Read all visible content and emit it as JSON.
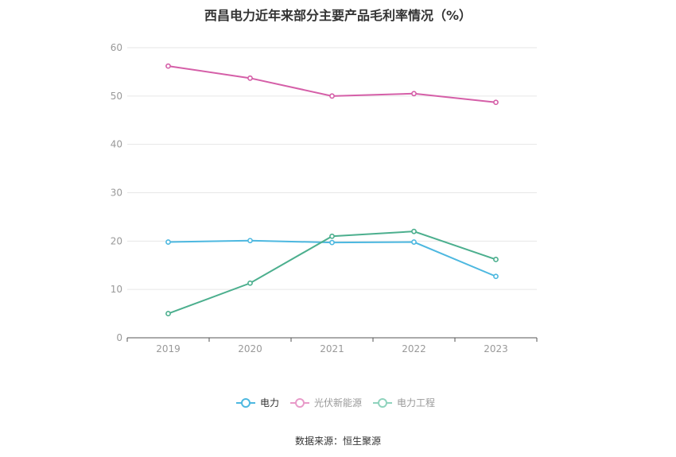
{
  "title": "西昌电力近年来部分主要产品毛利率情况（%）",
  "source": "数据来源：恒生聚源",
  "chart_data": {
    "type": "line",
    "categories": [
      "2019",
      "2020",
      "2021",
      "2022",
      "2023"
    ],
    "ylim": [
      0,
      60
    ],
    "yticks": [
      0,
      10,
      20,
      30,
      40,
      50,
      60
    ],
    "grid": true,
    "legend_position": "bottom-center",
    "series": [
      {
        "name": "电力",
        "color": "#4db8e0",
        "values": [
          19.8,
          20.1,
          19.7,
          19.8,
          12.7
        ]
      },
      {
        "name": "光伏新能源",
        "color": "#d55fa8",
        "values": [
          56.2,
          53.7,
          50.0,
          50.5,
          48.7
        ]
      },
      {
        "name": "电力工程",
        "color": "#4caf8e",
        "values": [
          5.0,
          11.3,
          21.0,
          22.0,
          16.2
        ]
      }
    ]
  }
}
